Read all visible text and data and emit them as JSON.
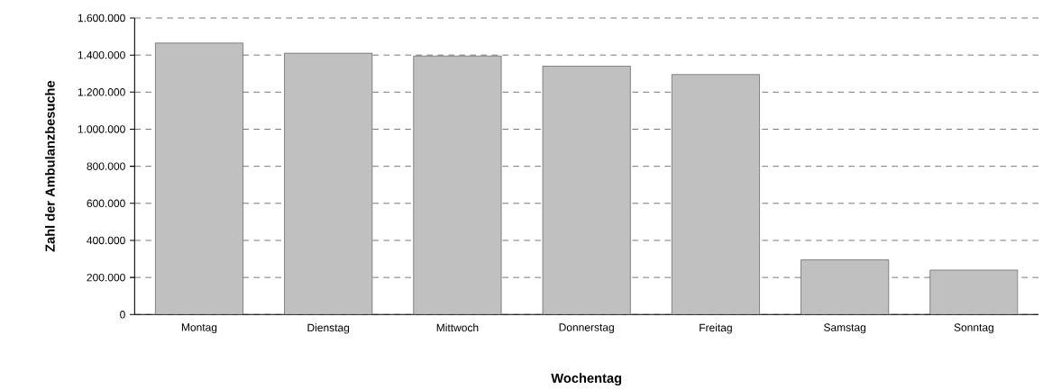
{
  "chart_data": {
    "type": "bar",
    "xlabel": "Wochentag",
    "ylabel": "Zahl der Ambulanzbesuche",
    "categories": [
      "Montag",
      "Dienstag",
      "Mittwoch",
      "Donnerstag",
      "Freitag",
      "Samstag",
      "Sonntag"
    ],
    "values": [
      1465000,
      1410000,
      1395000,
      1340000,
      1295000,
      295000,
      240000
    ],
    "color": "#c0c0c0",
    "ylim": [
      0,
      1600000
    ],
    "yticks": [
      {
        "value": 0,
        "label": "0"
      },
      {
        "value": 200000,
        "label": "200.000"
      },
      {
        "value": 400000,
        "label": "400.000"
      },
      {
        "value": 600000,
        "label": "600.000"
      },
      {
        "value": 800000,
        "label": "800.000"
      },
      {
        "value": 1000000,
        "label": "1.000.000"
      },
      {
        "value": 1200000,
        "label": "1.200.000"
      },
      {
        "value": 1400000,
        "label": "1.400.000"
      },
      {
        "value": 1600000,
        "label": "1.600.000"
      }
    ],
    "grid": "y"
  }
}
